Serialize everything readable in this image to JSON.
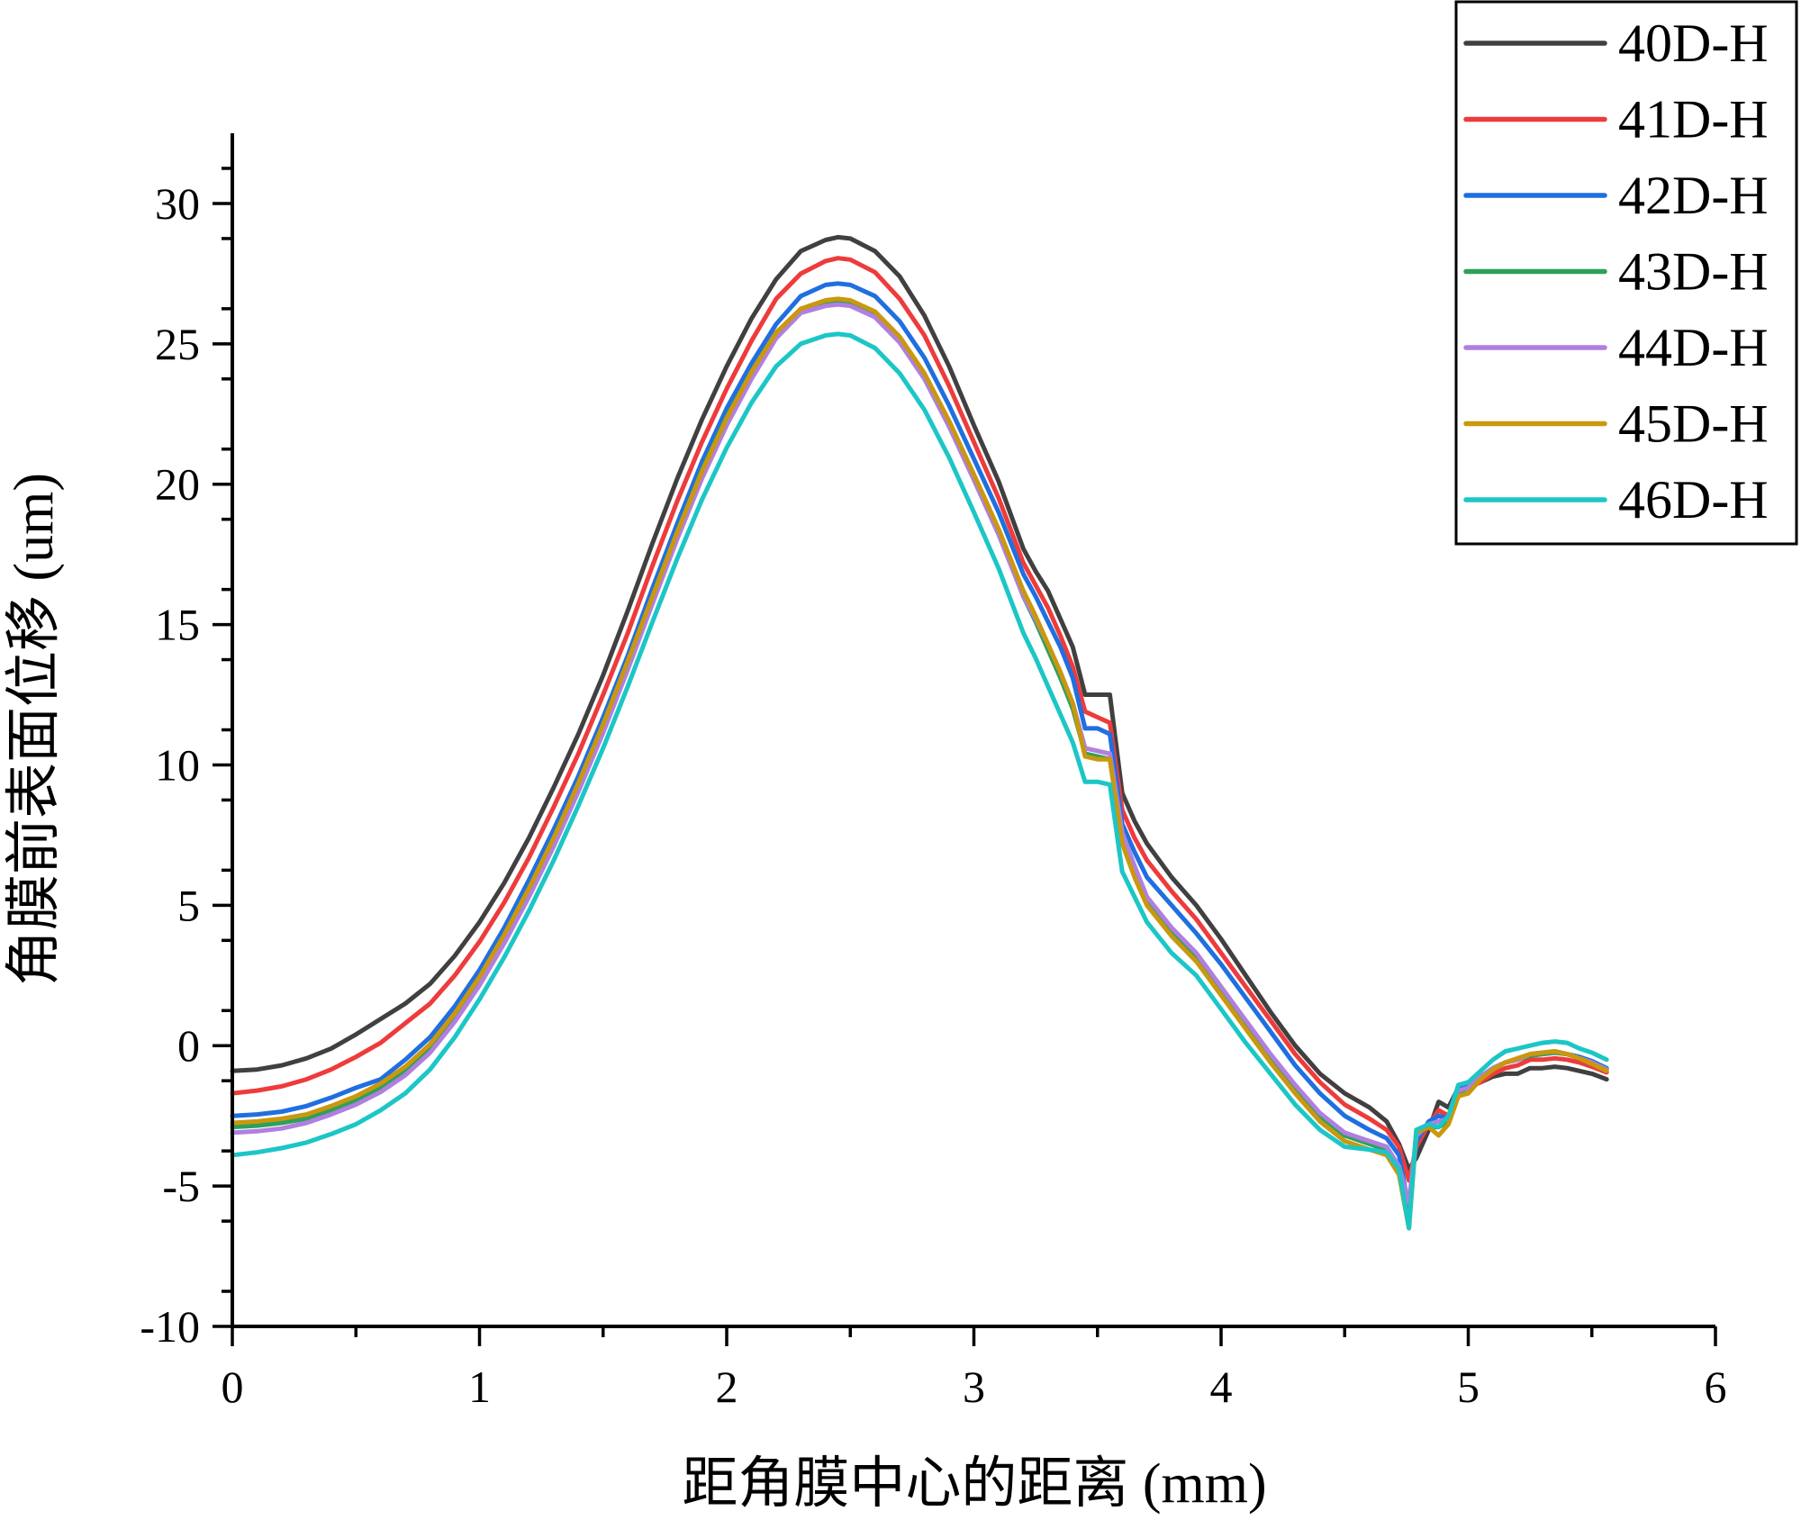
{
  "chart_data": {
    "type": "line",
    "title": "",
    "xlabel": "距角膜中心的距离 (mm)",
    "ylabel": "角膜前表面位移 (um)",
    "xlim": [
      0,
      6
    ],
    "ylim": [
      -10,
      32.5
    ],
    "x_ticks": [
      0,
      1,
      2,
      3,
      4,
      5,
      6
    ],
    "x_tick_labels": [
      "0",
      "1",
      "2",
      "3",
      "4",
      "5",
      "6"
    ],
    "y_ticks": [
      -10,
      -5,
      0,
      5,
      10,
      15,
      20,
      25,
      30
    ],
    "y_tick_labels": [
      "-10",
      "-5",
      "0",
      "5",
      "10",
      "15",
      "20",
      "25",
      "30"
    ],
    "legend_position": "top-right",
    "x": [
      0,
      0.1,
      0.2,
      0.3,
      0.4,
      0.5,
      0.6,
      0.7,
      0.8,
      0.9,
      1.0,
      1.1,
      1.2,
      1.3,
      1.4,
      1.5,
      1.6,
      1.7,
      1.8,
      1.9,
      2.0,
      2.1,
      2.2,
      2.3,
      2.4,
      2.45,
      2.5,
      2.6,
      2.7,
      2.8,
      2.9,
      3.0,
      3.1,
      3.2,
      3.25,
      3.3,
      3.35,
      3.4,
      3.45,
      3.5,
      3.55,
      3.6,
      3.65,
      3.7,
      3.8,
      3.9,
      4.0,
      4.1,
      4.2,
      4.3,
      4.4,
      4.5,
      4.6,
      4.67,
      4.72,
      4.76,
      4.79,
      4.84,
      4.88,
      4.92,
      4.96,
      5.0,
      5.05,
      5.1,
      5.15,
      5.2,
      5.25,
      5.3,
      5.35,
      5.4,
      5.45,
      5.5,
      5.56
    ],
    "series": [
      {
        "name": "40D-H",
        "color": "#404040",
        "values": [
          -0.9,
          -0.85,
          -0.7,
          -0.45,
          -0.1,
          0.4,
          0.95,
          1.5,
          2.2,
          3.2,
          4.4,
          5.8,
          7.4,
          9.2,
          11.1,
          13.2,
          15.5,
          17.9,
          20.2,
          22.3,
          24.2,
          25.9,
          27.3,
          28.3,
          28.7,
          28.8,
          28.75,
          28.3,
          27.4,
          26.0,
          24.2,
          22.1,
          20.1,
          17.7,
          16.9,
          16.2,
          15.2,
          14.2,
          12.5,
          12.5,
          12.5,
          9.0,
          8.0,
          7.2,
          6.0,
          5.0,
          3.8,
          2.5,
          1.2,
          0.0,
          -1.0,
          -1.7,
          -2.2,
          -2.7,
          -3.5,
          -4.4,
          -4.0,
          -3.0,
          -2.0,
          -2.2,
          -1.5,
          -1.4,
          -1.3,
          -1.1,
          -1.0,
          -1.0,
          -0.8,
          -0.8,
          -0.75,
          -0.8,
          -0.9,
          -1.0,
          -1.2
        ]
      },
      {
        "name": "41D-H",
        "color": "#ee3b3b",
        "values": [
          -1.7,
          -1.6,
          -1.45,
          -1.2,
          -0.85,
          -0.4,
          0.1,
          0.8,
          1.5,
          2.5,
          3.7,
          5.1,
          6.7,
          8.5,
          10.4,
          12.5,
          14.7,
          17.1,
          19.4,
          21.5,
          23.4,
          25.1,
          26.6,
          27.5,
          27.95,
          28.05,
          28.0,
          27.55,
          26.6,
          25.3,
          23.5,
          21.5,
          19.5,
          17.2,
          16.4,
          15.6,
          14.6,
          13.5,
          11.9,
          11.7,
          11.5,
          8.4,
          7.4,
          6.6,
          5.5,
          4.5,
          3.3,
          2.1,
          0.9,
          -0.3,
          -1.3,
          -2.1,
          -2.6,
          -3.0,
          -3.6,
          -4.8,
          -3.6,
          -2.8,
          -2.3,
          -2.5,
          -1.6,
          -1.5,
          -1.3,
          -1.0,
          -0.8,
          -0.7,
          -0.5,
          -0.5,
          -0.45,
          -0.5,
          -0.6,
          -0.75,
          -0.95
        ]
      },
      {
        "name": "42D-H",
        "color": "#1f6fe0",
        "values": [
          -2.5,
          -2.45,
          -2.35,
          -2.15,
          -1.85,
          -1.5,
          -1.2,
          -0.5,
          0.3,
          1.4,
          2.7,
          4.2,
          5.9,
          7.7,
          9.6,
          11.7,
          13.9,
          16.3,
          18.6,
          20.8,
          22.7,
          24.3,
          25.7,
          26.7,
          27.1,
          27.15,
          27.1,
          26.7,
          25.8,
          24.5,
          22.8,
          20.9,
          19.0,
          16.8,
          16.0,
          15.1,
          14.2,
          13.1,
          11.3,
          11.3,
          11.1,
          7.9,
          6.9,
          6.0,
          5.0,
          4.0,
          2.9,
          1.7,
          0.5,
          -0.7,
          -1.7,
          -2.5,
          -3.0,
          -3.3,
          -3.9,
          -5.8,
          -3.4,
          -2.7,
          -2.5,
          -2.6,
          -1.6,
          -1.4,
          -1.1,
          -0.8,
          -0.6,
          -0.5,
          -0.35,
          -0.3,
          -0.25,
          -0.3,
          -0.4,
          -0.55,
          -0.8
        ]
      },
      {
        "name": "43D-H",
        "color": "#2ea05a",
        "values": [
          -2.9,
          -2.85,
          -2.75,
          -2.6,
          -2.3,
          -1.95,
          -1.5,
          -0.9,
          -0.1,
          1.0,
          2.3,
          3.8,
          5.5,
          7.3,
          9.3,
          11.4,
          13.7,
          16.0,
          18.3,
          20.5,
          22.4,
          24.0,
          25.4,
          26.2,
          26.5,
          26.55,
          26.5,
          26.1,
          25.2,
          23.9,
          22.2,
          20.3,
          18.3,
          16.0,
          15.1,
          14.1,
          13.1,
          12.0,
          10.4,
          10.3,
          10.2,
          7.4,
          6.2,
          5.2,
          4.1,
          3.2,
          2.0,
          0.8,
          -0.4,
          -1.5,
          -2.5,
          -3.2,
          -3.5,
          -3.7,
          -4.5,
          -6.2,
          -3.0,
          -2.9,
          -2.9,
          -2.7,
          -1.7,
          -1.5,
          -1.1,
          -0.8,
          -0.6,
          -0.5,
          -0.35,
          -0.3,
          -0.25,
          -0.3,
          -0.45,
          -0.6,
          -0.85
        ]
      },
      {
        "name": "44D-H",
        "color": "#b07fe0",
        "values": [
          -3.1,
          -3.05,
          -2.95,
          -2.75,
          -2.45,
          -2.1,
          -1.65,
          -1.05,
          -0.25,
          0.85,
          2.15,
          3.65,
          5.3,
          7.1,
          9.05,
          11.15,
          13.4,
          15.75,
          18.05,
          20.2,
          22.1,
          23.75,
          25.2,
          26.1,
          26.35,
          26.4,
          26.35,
          25.95,
          25.05,
          23.75,
          22.05,
          20.15,
          18.2,
          16.0,
          15.2,
          14.3,
          13.3,
          12.2,
          10.6,
          10.5,
          10.4,
          7.6,
          6.4,
          5.3,
          4.2,
          3.3,
          2.1,
          0.9,
          -0.3,
          -1.4,
          -2.4,
          -3.1,
          -3.4,
          -3.6,
          -4.3,
          -5.6,
          -3.2,
          -2.8,
          -2.7,
          -2.6,
          -1.6,
          -1.5,
          -1.1,
          -0.8,
          -0.6,
          -0.5,
          -0.3,
          -0.25,
          -0.2,
          -0.3,
          -0.45,
          -0.6,
          -0.85
        ]
      },
      {
        "name": "45D-H",
        "color": "#c9980e",
        "values": [
          -2.75,
          -2.7,
          -2.6,
          -2.45,
          -2.15,
          -1.8,
          -1.35,
          -0.75,
          0.05,
          1.15,
          2.45,
          3.95,
          5.6,
          7.4,
          9.35,
          11.45,
          13.7,
          16.0,
          18.3,
          20.45,
          22.35,
          24.0,
          25.4,
          26.25,
          26.55,
          26.6,
          26.55,
          26.15,
          25.25,
          23.95,
          22.25,
          20.35,
          18.4,
          16.2,
          15.3,
          14.3,
          13.3,
          12.2,
          10.3,
          10.2,
          10.2,
          7.2,
          6.0,
          5.0,
          3.9,
          3.0,
          1.8,
          0.6,
          -0.6,
          -1.7,
          -2.7,
          -3.4,
          -3.7,
          -3.9,
          -4.6,
          -6.5,
          -3.1,
          -2.9,
          -3.2,
          -2.8,
          -1.8,
          -1.7,
          -1.2,
          -0.85,
          -0.6,
          -0.45,
          -0.3,
          -0.25,
          -0.2,
          -0.3,
          -0.45,
          -0.65,
          -0.9
        ]
      },
      {
        "name": "46D-H",
        "color": "#1cc6c6",
        "values": [
          -3.9,
          -3.8,
          -3.65,
          -3.45,
          -3.15,
          -2.8,
          -2.3,
          -1.7,
          -0.85,
          0.3,
          1.65,
          3.15,
          4.8,
          6.6,
          8.55,
          10.6,
          12.8,
          15.1,
          17.35,
          19.45,
          21.3,
          22.9,
          24.2,
          25.0,
          25.3,
          25.35,
          25.3,
          24.85,
          23.95,
          22.65,
          20.95,
          19.0,
          17.0,
          14.7,
          13.8,
          12.8,
          11.8,
          10.8,
          9.4,
          9.4,
          9.3,
          6.2,
          5.3,
          4.4,
          3.3,
          2.5,
          1.3,
          0.1,
          -1.0,
          -2.1,
          -3.0,
          -3.6,
          -3.7,
          -3.8,
          -4.4,
          -6.5,
          -3.0,
          -2.8,
          -2.9,
          -2.5,
          -1.4,
          -1.3,
          -0.9,
          -0.5,
          -0.2,
          -0.1,
          0.0,
          0.1,
          0.15,
          0.1,
          -0.1,
          -0.25,
          -0.5
        ]
      }
    ]
  }
}
